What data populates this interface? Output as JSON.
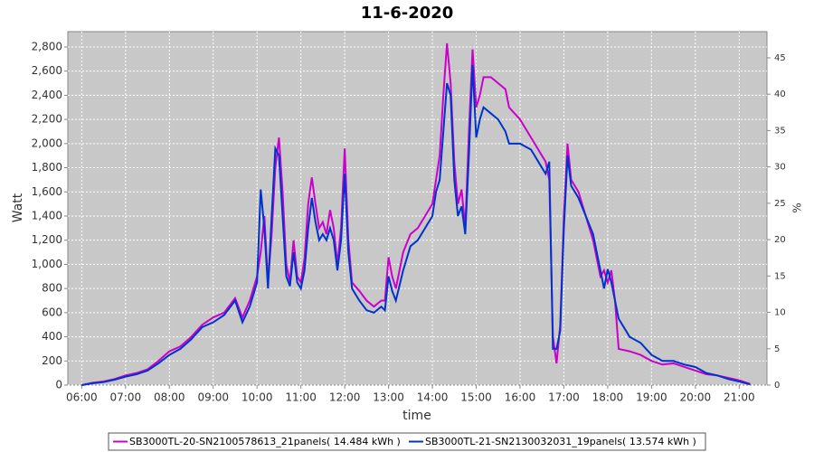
{
  "chart_data": {
    "type": "line",
    "title": "11-6-2020",
    "xlabel": "time",
    "ylabel": "Watt",
    "y2label": "%",
    "grid": true,
    "legend": "bottom",
    "xlim": [
      "05:41",
      "21:38"
    ],
    "xticks": [
      "06:00",
      "07:00",
      "08:00",
      "09:00",
      "10:00",
      "11:00",
      "12:00",
      "13:00",
      "14:00",
      "15:00",
      "16:00",
      "17:00",
      "18:00",
      "19:00",
      "20:00",
      "21:00"
    ],
    "ylim": [
      0,
      2927
    ],
    "yticks": [
      0,
      200,
      400,
      600,
      800,
      {
        "value": 1000,
        "label": "1,000"
      },
      {
        "value": 1200,
        "label": "1,200"
      },
      {
        "value": 1400,
        "label": "1,400"
      },
      {
        "value": 1600,
        "label": "1,600"
      },
      {
        "value": 1800,
        "label": "1,800"
      },
      {
        "value": 2000,
        "label": "2,000"
      },
      {
        "value": 2200,
        "label": "2,200"
      },
      {
        "value": 2400,
        "label": "2,400"
      },
      {
        "value": 2600,
        "label": "2,600"
      },
      {
        "value": 2800,
        "label": "2,800"
      }
    ],
    "y2lim": [
      0,
      48.6
    ],
    "y2ticks": [
      0,
      5,
      10,
      15,
      20,
      25,
      30,
      35,
      40,
      45
    ],
    "x": [
      "06:00",
      "06:15",
      "06:30",
      "06:45",
      "07:00",
      "07:15",
      "07:30",
      "07:45",
      "08:00",
      "08:15",
      "08:30",
      "08:45",
      "09:00",
      "09:15",
      "09:30",
      "09:40",
      "09:50",
      "10:00",
      "10:05",
      "10:10",
      "10:15",
      "10:20",
      "10:25",
      "10:30",
      "10:35",
      "10:40",
      "10:45",
      "10:50",
      "10:55",
      "11:00",
      "11:05",
      "11:10",
      "11:15",
      "11:20",
      "11:25",
      "11:30",
      "11:35",
      "11:40",
      "11:45",
      "11:50",
      "11:55",
      "12:00",
      "12:05",
      "12:10",
      "12:20",
      "12:30",
      "12:40",
      "12:50",
      "12:55",
      "13:00",
      "13:05",
      "13:10",
      "13:20",
      "13:30",
      "13:40",
      "13:50",
      "14:00",
      "14:05",
      "14:10",
      "14:15",
      "14:20",
      "14:25",
      "14:30",
      "14:35",
      "14:40",
      "14:45",
      "14:50",
      "14:55",
      "15:00",
      "15:05",
      "15:10",
      "15:20",
      "15:30",
      "15:40",
      "15:45",
      "16:00",
      "16:15",
      "16:30",
      "16:35",
      "16:40",
      "16:45",
      "16:50",
      "16:55",
      "17:00",
      "17:05",
      "17:10",
      "17:20",
      "17:30",
      "17:40",
      "17:50",
      "17:55",
      "18:00",
      "18:05",
      "18:10",
      "18:15",
      "18:30",
      "18:45",
      "19:00",
      "19:15",
      "19:30",
      "19:45",
      "20:00",
      "20:15",
      "20:30",
      "20:45",
      "21:00",
      "21:15"
    ],
    "series": [
      {
        "name": "SB3000TL-20-SN2100578613_21panels( 14.484 kWh )",
        "color": "#cc00cc",
        "values": [
          0,
          20,
          30,
          50,
          80,
          100,
          130,
          200,
          280,
          320,
          400,
          500,
          560,
          600,
          720,
          560,
          700,
          900,
          1100,
          1400,
          850,
          1250,
          1800,
          2050,
          1600,
          1000,
          850,
          1200,
          900,
          850,
          1050,
          1500,
          1720,
          1500,
          1300,
          1350,
          1250,
          1450,
          1300,
          1000,
          1300,
          1960,
          1200,
          850,
          780,
          700,
          650,
          700,
          700,
          1060,
          900,
          800,
          1100,
          1250,
          1300,
          1400,
          1500,
          1700,
          1900,
          2400,
          2830,
          2500,
          1850,
          1500,
          1620,
          1300,
          2100,
          2780,
          2300,
          2400,
          2550,
          2550,
          2500,
          2450,
          2300,
          2200,
          2050,
          1900,
          1850,
          1700,
          400,
          180,
          500,
          1400,
          2000,
          1700,
          1600,
          1400,
          1200,
          900,
          950,
          850,
          950,
          700,
          300,
          280,
          250,
          200,
          170,
          180,
          150,
          120,
          90,
          80,
          60,
          40,
          10
        ]
      },
      {
        "name": "SB3000TL-21-SN2130032031_19panels( 13.574 kWh )",
        "color": "#0033cc",
        "values": [
          0,
          15,
          25,
          45,
          70,
          90,
          120,
          180,
          250,
          300,
          380,
          480,
          520,
          580,
          700,
          520,
          650,
          850,
          1620,
          1300,
          800,
          1400,
          1960,
          1900,
          1400,
          900,
          820,
          1100,
          850,
          800,
          950,
          1300,
          1550,
          1350,
          1200,
          1250,
          1200,
          1300,
          1200,
          950,
          1200,
          1750,
          1100,
          800,
          700,
          620,
          600,
          650,
          620,
          900,
          780,
          700,
          950,
          1150,
          1200,
          1300,
          1400,
          1600,
          1700,
          2100,
          2500,
          2400,
          1700,
          1400,
          1480,
          1250,
          1900,
          2650,
          2050,
          2200,
          2300,
          2250,
          2200,
          2100,
          2000,
          2000,
          1950,
          1800,
          1750,
          1850,
          300,
          300,
          450,
          1300,
          1900,
          1650,
          1550,
          1400,
          1250,
          950,
          800,
          960,
          850,
          700,
          550,
          400,
          350,
          250,
          200,
          200,
          170,
          150,
          100,
          80,
          50,
          30,
          5
        ]
      }
    ]
  }
}
